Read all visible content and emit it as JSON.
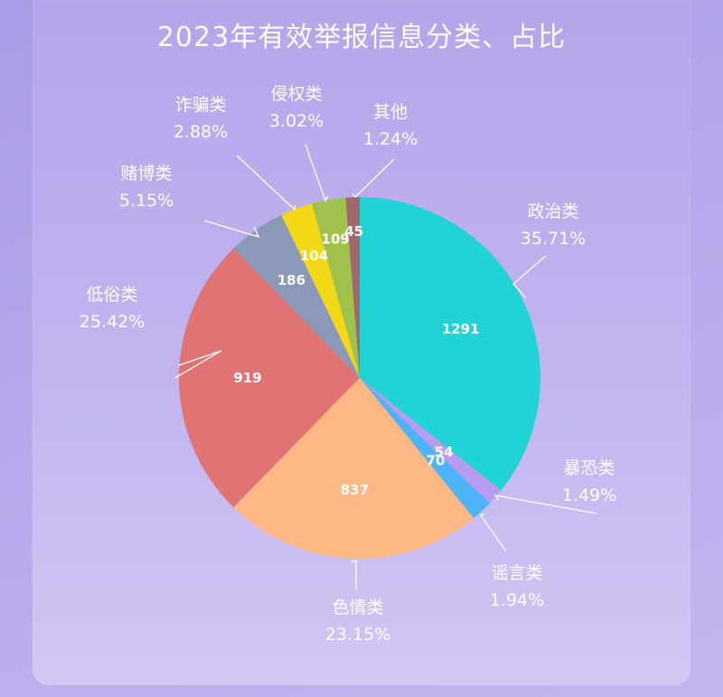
{
  "chart_data": {
    "type": "pie",
    "title": "2023年有效举报信息分类、占比",
    "slices": [
      {
        "name": "政治类",
        "value": 1291,
        "percent": "35.71%",
        "color": "#22d3d6"
      },
      {
        "name": "暴恐类",
        "value": 54,
        "percent": "1.49%",
        "color": "#b79cf0"
      },
      {
        "name": "谣言类",
        "value": 70,
        "percent": "1.94%",
        "color": "#4fb3f7"
      },
      {
        "name": "色情类",
        "value": 837,
        "percent": "23.15%",
        "color": "#ffb884"
      },
      {
        "name": "低俗类",
        "value": 919,
        "percent": "25.42%",
        "color": "#e07474"
      },
      {
        "name": "赌博类",
        "value": 186,
        "percent": "5.15%",
        "color": "#8b99b9"
      },
      {
        "name": "诈骗类",
        "value": 104,
        "percent": "2.88%",
        "color": "#f2d816"
      },
      {
        "name": "侵权类",
        "value": 109,
        "percent": "3.02%",
        "color": "#9fc24c"
      },
      {
        "name": "其他",
        "value": 45,
        "percent": "1.24%",
        "color": "#a0686a"
      }
    ]
  }
}
